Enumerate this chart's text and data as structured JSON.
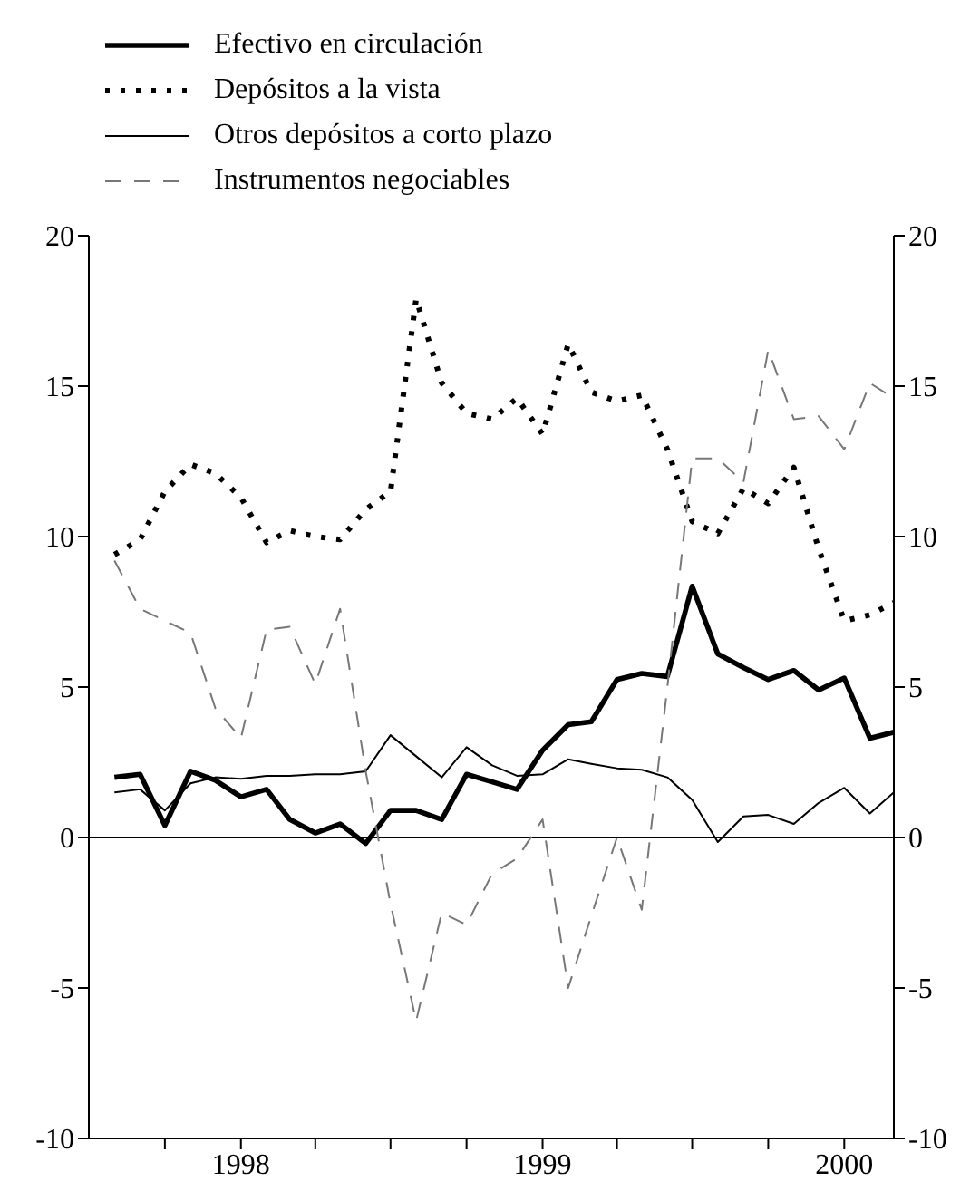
{
  "chart_data": {
    "type": "line",
    "x": [
      "1997-08",
      "1997-09",
      "1997-10",
      "1997-11",
      "1997-12",
      "1998-01",
      "1998-02",
      "1998-03",
      "1998-04",
      "1998-05",
      "1998-06",
      "1998-07",
      "1998-08",
      "1998-09",
      "1998-10",
      "1998-11",
      "1998-12",
      "1999-01",
      "1999-02",
      "1999-03",
      "1999-04",
      "1999-05",
      "1999-06",
      "1999-07",
      "1999-08",
      "1999-09",
      "1999-10",
      "1999-11",
      "1999-12",
      "2000-01",
      "2000-02",
      "2000-03"
    ],
    "series": [
      {
        "name": "Efectivo en circulación",
        "color": "#000000",
        "line_style": "solid",
        "values": [
          2.0,
          2.1,
          0.4,
          2.2,
          1.9,
          1.35,
          1.6,
          0.6,
          0.15,
          0.45,
          -0.2,
          0.9,
          0.9,
          0.6,
          2.1,
          1.85,
          1.6,
          2.9,
          3.75,
          3.85,
          5.25,
          5.45,
          5.35,
          8.35,
          6.1,
          5.65,
          5.25,
          5.55,
          4.9,
          5.3,
          3.3,
          3.5
        ]
      },
      {
        "name": "Depósitos a la vista",
        "color": "#000000",
        "line_style": "dotted",
        "values": [
          9.4,
          9.9,
          11.5,
          12.4,
          12.1,
          11.3,
          9.8,
          10.2,
          10.0,
          9.9,
          10.9,
          11.5,
          17.9,
          15.1,
          14.1,
          13.9,
          14.6,
          13.4,
          16.4,
          14.8,
          14.5,
          14.7,
          12.9,
          10.5,
          10.1,
          11.6,
          11.1,
          12.3,
          9.6,
          7.2,
          7.4,
          7.8
        ]
      },
      {
        "name": "Otros depósitos a corto plazo",
        "color": "#000000",
        "line_style": "solid",
        "values": [
          1.5,
          1.6,
          0.9,
          1.8,
          2.0,
          1.95,
          2.05,
          2.05,
          2.1,
          2.1,
          2.2,
          3.4,
          2.7,
          2.0,
          3.0,
          2.4,
          2.05,
          2.1,
          2.6,
          2.45,
          2.3,
          2.25,
          2.0,
          1.25,
          -0.15,
          0.7,
          0.75,
          0.45,
          1.15,
          1.65,
          0.8,
          1.5
        ]
      },
      {
        "name": "Instrumentos negociables",
        "color": "#777777",
        "line_style": "dashed",
        "values": [
          9.2,
          7.6,
          7.2,
          6.8,
          4.3,
          3.3,
          6.9,
          7.0,
          5.1,
          7.6,
          2.2,
          -2.2,
          -6.1,
          -2.5,
          -2.9,
          -1.2,
          -0.7,
          0.6,
          -5.0,
          -2.6,
          0.0,
          -2.4,
          5.0,
          12.6,
          12.6,
          11.8,
          16.2,
          13.9,
          14.0,
          12.9,
          15.1,
          14.6
        ]
      }
    ],
    "xlim": [
      "1997-07",
      "2000-03"
    ],
    "xticks": [
      {
        "value": "1997-10",
        "label": null
      },
      {
        "value": "1998-01",
        "label": "1998"
      },
      {
        "value": "1998-04",
        "label": null
      },
      {
        "value": "1998-07",
        "label": null
      },
      {
        "value": "1998-10",
        "label": null
      },
      {
        "value": "1999-01",
        "label": "1999"
      },
      {
        "value": "1999-04",
        "label": null
      },
      {
        "value": "1999-07",
        "label": null
      },
      {
        "value": "1999-10",
        "label": null
      },
      {
        "value": "2000-01",
        "label": "2000"
      }
    ],
    "ylim": [
      -10,
      20
    ],
    "yticks": [
      -10,
      -5,
      0,
      5,
      10,
      15,
      20
    ],
    "y2lim": [
      -10,
      20
    ],
    "y2ticks": [
      -10,
      -5,
      0,
      5,
      10,
      15,
      20
    ],
    "ref_lines": [
      {
        "axis": "y",
        "value": 0,
        "color": "#000000"
      }
    ],
    "legend": "top left",
    "grid": false,
    "marker": "none"
  }
}
